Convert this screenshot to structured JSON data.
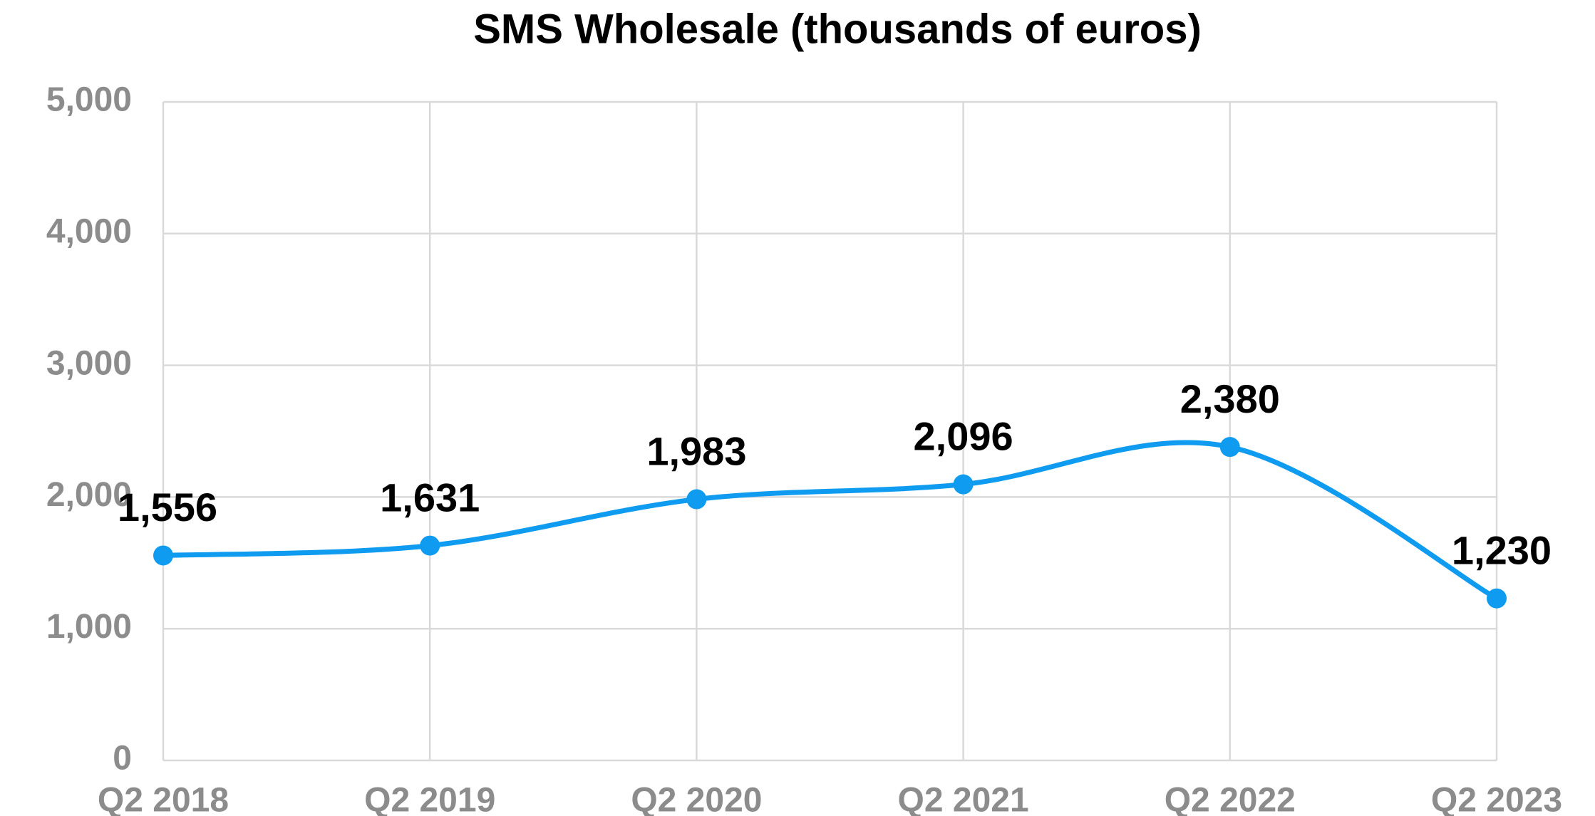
{
  "chart_data": {
    "type": "line",
    "title": "SMS Wholesale (thousands of euros)",
    "categories": [
      "Q2 2018",
      "Q2 2019",
      "Q2 2020",
      "Q2 2021",
      "Q2 2022",
      "Q2 2023"
    ],
    "series": [
      {
        "name": "SMS Wholesale",
        "color": "#0f9cf0",
        "values": [
          1556,
          1631,
          1983,
          2096,
          2380,
          1230
        ],
        "value_labels": [
          "1,556",
          "1,631",
          "1,983",
          "2,096",
          "2,380",
          "1,230"
        ]
      }
    ],
    "ylim": [
      0,
      5000
    ],
    "yticks": [
      0,
      {
        "value": 1000,
        "label": "1,000"
      },
      {
        "value": 2000,
        "label": "2,000"
      },
      {
        "value": 3000,
        "label": "3,000"
      },
      {
        "value": 4000,
        "label": "4,000"
      },
      {
        "value": 5000,
        "label": "5,000"
      }
    ],
    "grid": true,
    "smooth": true
  }
}
